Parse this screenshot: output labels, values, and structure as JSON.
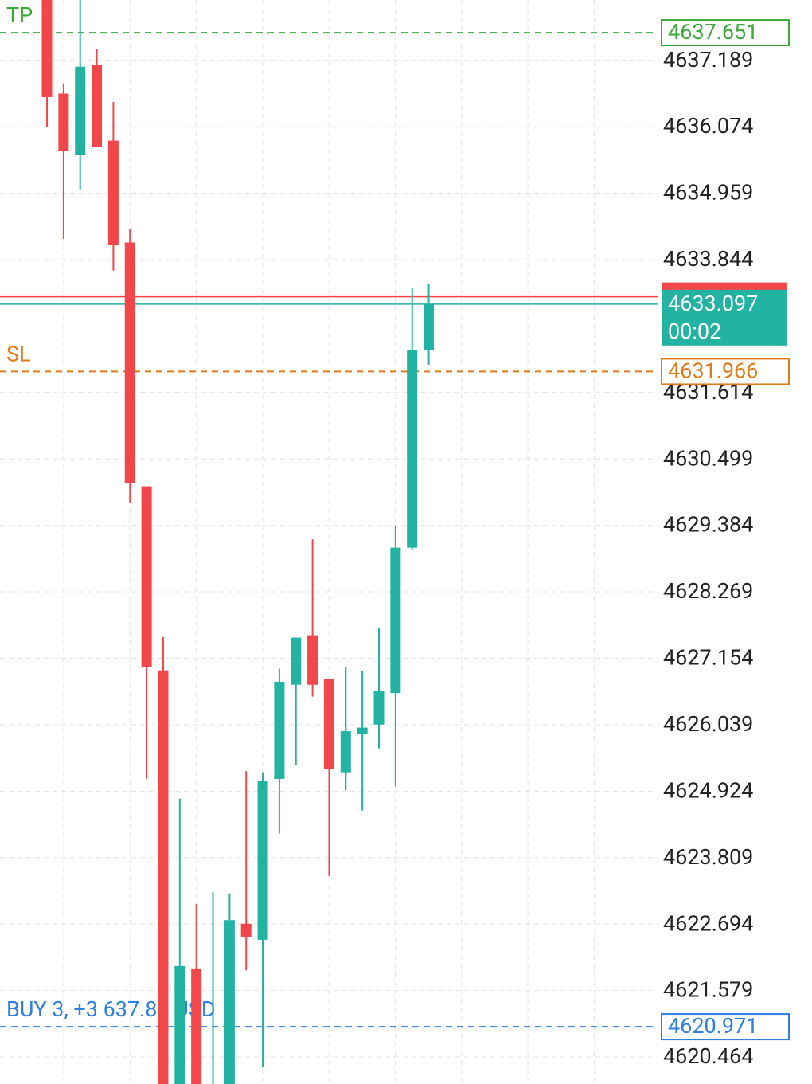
{
  "chart_data": {
    "type": "candlestick",
    "up_color": "#22b3a3",
    "down_color": "#f2474a",
    "grid": true,
    "ylim": [
      4620.01,
      4638.2
    ],
    "yticks": [
      4637.189,
      4636.074,
      4634.959,
      4633.844,
      4631.614,
      4630.499,
      4629.384,
      4628.269,
      4627.154,
      4626.039,
      4624.924,
      4623.809,
      4622.694,
      4621.579,
      4620.464
    ],
    "open": [
      4638.2,
      4636.63,
      4635.6,
      4637.11,
      4635.84,
      4634.13,
      4630.04,
      4626.95,
      4620.01,
      4621.95,
      4620.01,
      4620.01,
      4622.7,
      4622.43,
      4625.13,
      4626.71,
      4627.54,
      4626.8,
      4625.24,
      4625.88,
      4626.04,
      4626.57,
      4629.01,
      4632.32
    ],
    "high": [
      4638.2,
      4636.8,
      4638.2,
      4637.38,
      4636.49,
      4634.36,
      4630.04,
      4627.51,
      4624.8,
      4623.03,
      4623.23,
      4623.21,
      4625.26,
      4625.24,
      4626.98,
      4627.5,
      4629.15,
      4626.8,
      4627.0,
      4626.94,
      4627.67,
      4629.38,
      4633.37,
      4633.43
    ],
    "low": [
      4636.07,
      4634.19,
      4635.02,
      4635.73,
      4633.66,
      4629.76,
      4625.13,
      4620.01,
      4620.01,
      4620.01,
      4620.01,
      4620.01,
      4621.92,
      4620.29,
      4624.21,
      4625.37,
      4626.51,
      4623.5,
      4624.94,
      4624.6,
      4625.64,
      4625.0,
      4628.98,
      4632.08
    ],
    "close": [
      4636.57,
      4635.67,
      4637.08,
      4635.73,
      4634.09,
      4630.09,
      4627.0,
      4620.01,
      4621.99,
      4620.01,
      4620.01,
      4622.76,
      4622.48,
      4625.1,
      4626.76,
      4627.5,
      4626.71,
      4625.29,
      4625.93,
      4625.99,
      4626.61,
      4629.01,
      4632.32,
      4633.097
    ],
    "levels": [
      {
        "label": "TP",
        "value": 4637.651,
        "color": "#3aaa3a"
      },
      {
        "label": "SL",
        "value": 4631.966,
        "color": "#e07b18"
      },
      {
        "label": "BUY 3,  +3 637.80 USD",
        "value": 4620.971,
        "color": "#2f7fe0"
      }
    ],
    "bid": {
      "value": 4633.22,
      "color": "#f2474a"
    },
    "last_price": {
      "value": 4633.097,
      "timer": "00:02",
      "color": "#22b3a3"
    }
  }
}
